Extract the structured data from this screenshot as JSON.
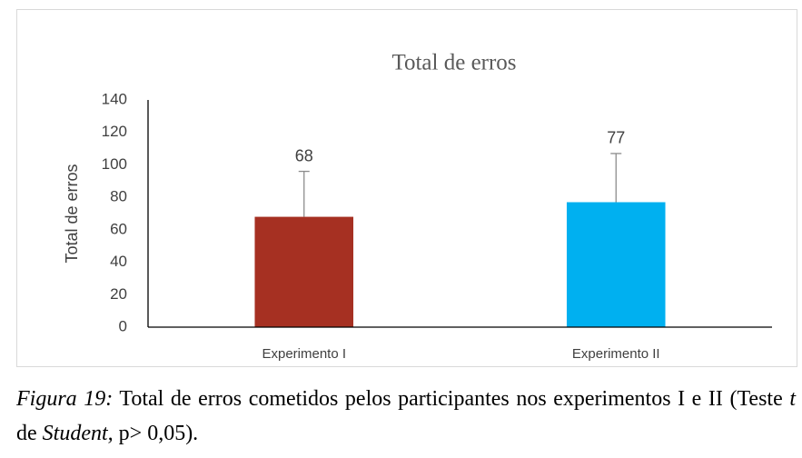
{
  "chart_data": {
    "type": "bar",
    "title": "Total de erros",
    "y_label": "Total de erros",
    "categories": [
      "Experimento I",
      "Experimento II"
    ],
    "values": [
      68,
      77
    ],
    "errors": [
      28,
      30
    ],
    "colors": [
      "#a63022",
      "#00b0f0"
    ],
    "ylim": [
      0,
      140
    ],
    "yticks": [
      0,
      20,
      40,
      60,
      80,
      100,
      120,
      140
    ],
    "grid": false
  },
  "caption": {
    "label": "Figura 19:",
    "parts": [
      "Total de erros cometidos pelos participantes nos experimentos I e II (Teste ",
      "t",
      " de ",
      "Student,",
      " p> 0,05)."
    ]
  }
}
